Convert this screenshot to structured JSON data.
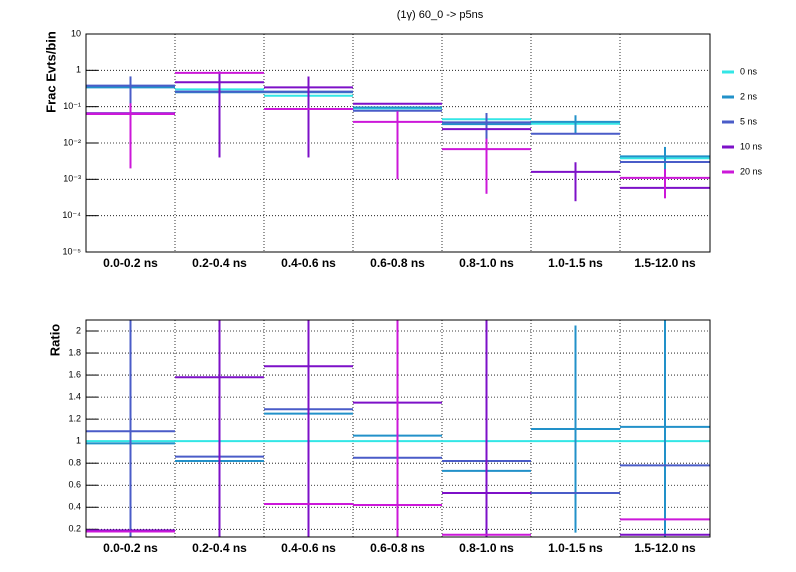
{
  "chart_data": [
    {
      "type": "step",
      "title": "(1γ) 60_0 -> p5ns",
      "y_label": "Frac Evts/bin",
      "log_y": true,
      "grid": true,
      "legend": "right",
      "categories": [
        "0.0-0.2 ns",
        "0.2-0.4 ns",
        "0.4-0.6 ns",
        "0.6-0.8 ns",
        "0.8-1.0 ns",
        "1.0-1.5 ns",
        "1.5-12.0 ns"
      ],
      "ylim": [
        1e-05,
        10
      ],
      "yticks": [
        {
          "value": 1e-05,
          "label": "10⁻⁵"
        },
        {
          "value": 0.0001,
          "label": "10⁻⁴"
        },
        {
          "value": 0.001,
          "label": "10⁻³"
        },
        {
          "value": 0.01,
          "label": "10⁻²"
        },
        {
          "value": 0.1,
          "label": "10⁻¹"
        },
        1,
        10
      ],
      "series": [
        {
          "name": "0 ns",
          "color": "#33e6e6",
          "values": [
            0.35,
            0.3,
            0.2,
            0.09,
            0.045,
            0.034,
            0.0038
          ],
          "errors": [
            null,
            null,
            null,
            null,
            null,
            null,
            null
          ]
        },
        {
          "name": "2 ns",
          "color": "#2291c9",
          "values": [
            0.34,
            0.25,
            0.25,
            0.095,
            0.033,
            0.038,
            0.0043
          ],
          "errors": [
            null,
            null,
            null,
            null,
            null,
            0.02,
            0.0035
          ]
        },
        {
          "name": "5 ns",
          "color": "#4a5cc8",
          "values": [
            0.38,
            0.26,
            0.26,
            0.077,
            0.037,
            0.018,
            0.003
          ],
          "errors": [
            0.3,
            null,
            null,
            null,
            0.03,
            null,
            null
          ]
        },
        {
          "name": "10 ns",
          "color": "#7d10c8",
          "values": [
            0.066,
            0.47,
            0.34,
            0.12,
            0.024,
            0.0016,
            0.00058
          ],
          "errors": [
            null,
            0.466,
            0.336,
            null,
            null,
            0.00135,
            null
          ]
        },
        {
          "name": "20 ns",
          "color": "#cc18d9",
          "values": [
            0.063,
            0.85,
            0.086,
            0.038,
            0.0068,
            null,
            0.0011
          ],
          "errors": [
            0.061,
            null,
            null,
            0.037,
            0.0064,
            null,
            0.0008
          ]
        }
      ]
    },
    {
      "type": "step",
      "y_label": "Ratio",
      "log_y": false,
      "grid": true,
      "categories": [
        "0.0-0.2 ns",
        "0.2-0.4 ns",
        "0.4-0.6 ns",
        "0.6-0.8 ns",
        "0.8-1.0 ns",
        "1.0-1.5 ns",
        "1.5-12.0 ns"
      ],
      "ylim": [
        0.13,
        2.1
      ],
      "yticks": [
        0.2,
        0.4,
        0.6,
        0.8,
        1,
        1.2,
        1.4,
        1.6,
        1.8,
        2
      ],
      "series": [
        {
          "color": "#33e6e6",
          "values": [
            1,
            1,
            1,
            1,
            1,
            1,
            1
          ],
          "errors": [
            null,
            null,
            null,
            null,
            null,
            null,
            null
          ]
        },
        {
          "color": "#2291c9",
          "values": [
            0.98,
            0.82,
            1.25,
            1.05,
            0.73,
            1.11,
            1.13
          ],
          "errors": [
            null,
            null,
            null,
            null,
            null,
            0.94,
            1.0
          ]
        },
        {
          "color": "#4a5cc8",
          "values": [
            1.09,
            0.86,
            1.29,
            0.85,
            0.82,
            0.53,
            0.78
          ],
          "errors": [
            2.0,
            null,
            null,
            null,
            0.91,
            null,
            null
          ]
        },
        {
          "color": "#7d10c8",
          "values": [
            0.19,
            1.58,
            1.68,
            1.35,
            0.53,
            null,
            0.15
          ],
          "errors": [
            null,
            2.0,
            2.0,
            null,
            2.0,
            null,
            null
          ]
        },
        {
          "color": "#cc18d9",
          "values": [
            0.18,
            null,
            0.43,
            0.42,
            0.15,
            null,
            0.29
          ],
          "errors": [
            null,
            null,
            null,
            2.0,
            null,
            null,
            null
          ]
        }
      ]
    }
  ]
}
